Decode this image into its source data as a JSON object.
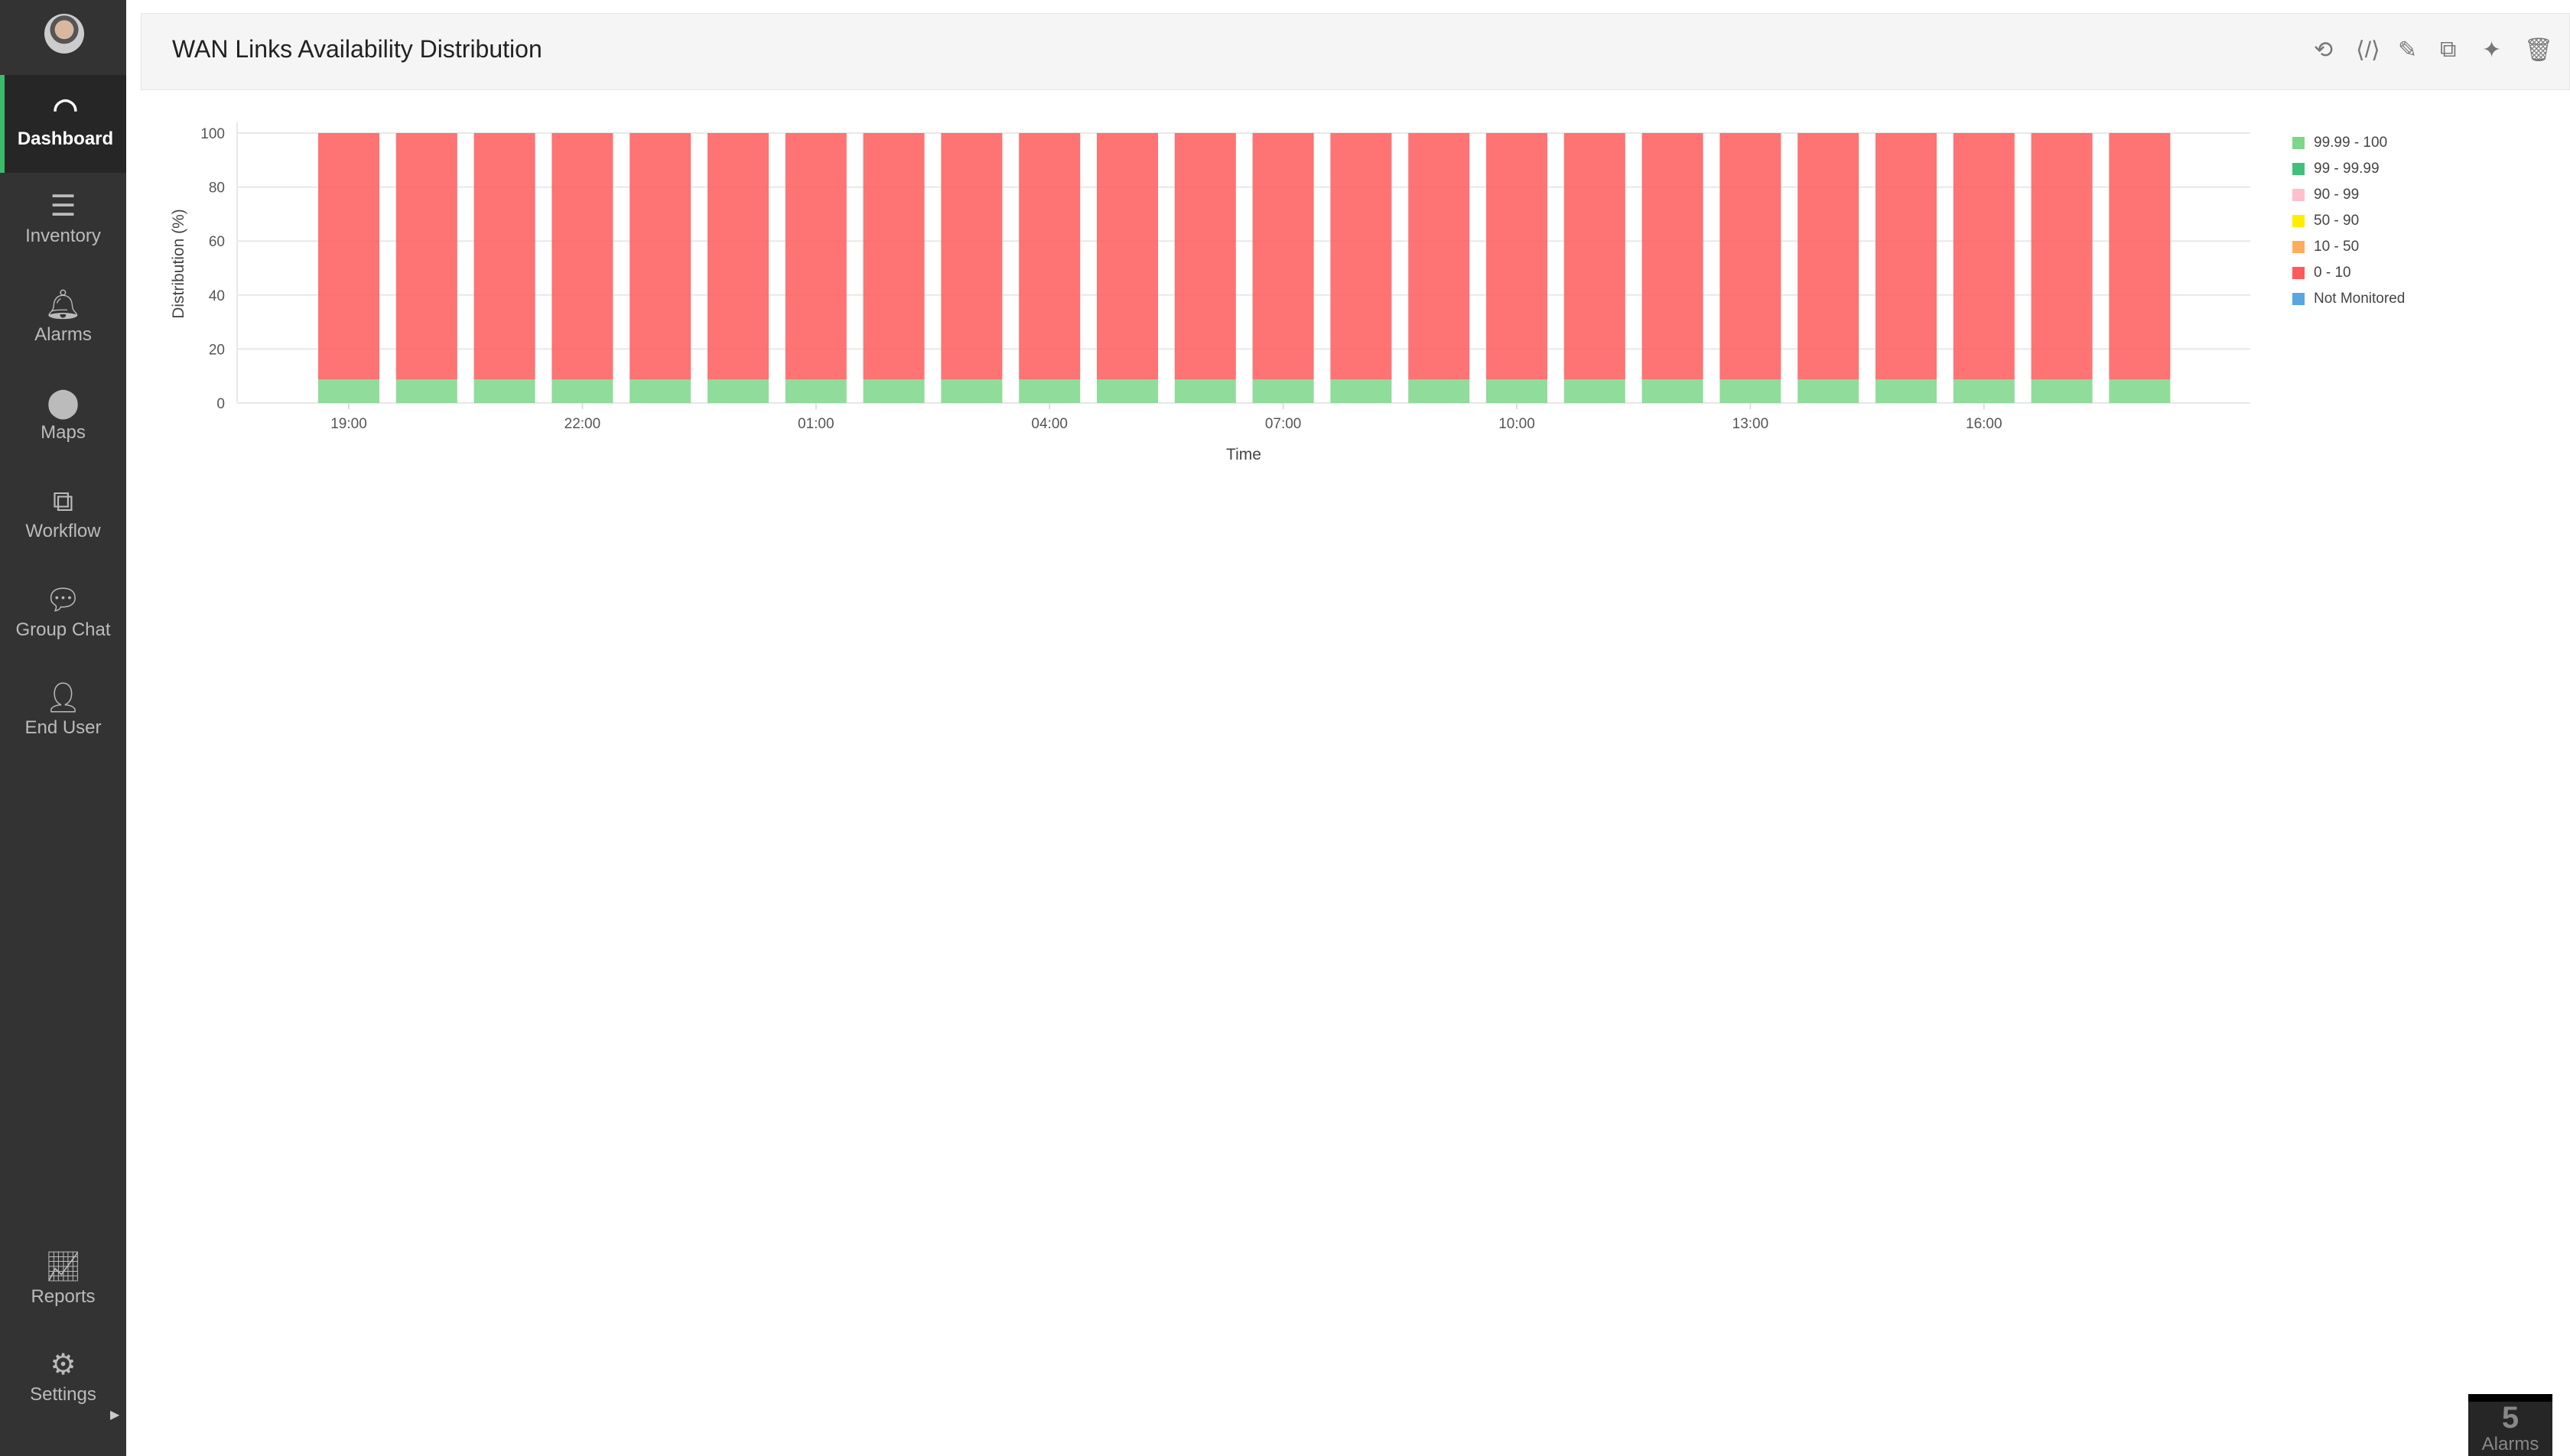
{
  "sidebar": {
    "items": [
      {
        "label": "Dashboard",
        "icon": "speedometer-icon",
        "glyph": "◠"
      },
      {
        "label": "Inventory",
        "icon": "list-check-icon",
        "glyph": "☰"
      },
      {
        "label": "Alarms",
        "icon": "bell-icon",
        "glyph": "🔔︎"
      },
      {
        "label": "Maps",
        "icon": "map-pin-icon",
        "glyph": "⬤"
      },
      {
        "label": "Workflow",
        "icon": "workflow-icon",
        "glyph": "⧉"
      },
      {
        "label": "Group Chat",
        "icon": "chat-icon",
        "glyph": "💬︎"
      },
      {
        "label": "End User",
        "icon": "user-icon",
        "glyph": "👤︎"
      },
      {
        "label": "Reports",
        "icon": "chart-icon",
        "glyph": "📈︎"
      },
      {
        "label": "Settings",
        "icon": "gear-icon",
        "glyph": "⚙"
      }
    ]
  },
  "widget": {
    "title": "WAN Links Availability Distribution",
    "tools": [
      {
        "icon": "refresh-icon",
        "glyph": "⟲"
      },
      {
        "icon": "embed-code-icon",
        "glyph": "⟨/⟩"
      },
      {
        "icon": "edit-icon",
        "glyph": "✎"
      },
      {
        "icon": "copy-icon",
        "glyph": "⧉"
      },
      {
        "icon": "pin-icon",
        "glyph": "✦"
      },
      {
        "icon": "trash-icon",
        "glyph": "🗑︎"
      }
    ]
  },
  "alarms": {
    "count": "5",
    "label": "Alarms"
  },
  "chart_data": {
    "type": "bar",
    "stacked": true,
    "xlabel": "Time",
    "ylabel": "Distribution (%)",
    "ylim": [
      0,
      100
    ],
    "yticks": [
      0,
      20,
      40,
      60,
      80,
      100
    ],
    "categories": [
      "19:00",
      "20:00",
      "21:00",
      "22:00",
      "23:00",
      "00:00",
      "01:00",
      "02:00",
      "03:00",
      "04:00",
      "05:00",
      "06:00",
      "07:00",
      "08:00",
      "09:00",
      "10:00",
      "11:00",
      "12:00",
      "13:00",
      "14:00",
      "15:00",
      "16:00",
      "17:00",
      "18:00"
    ],
    "xtick_labels": [
      "19:00",
      "22:00",
      "01:00",
      "04:00",
      "07:00",
      "10:00",
      "13:00",
      "16:00"
    ],
    "grid": true,
    "legend_position": "right",
    "series": [
      {
        "name": "99.99 - 100",
        "color": "#7dd68a",
        "values": [
          8.7,
          8.7,
          8.7,
          8.7,
          8.7,
          8.7,
          8.7,
          8.7,
          8.7,
          8.7,
          8.7,
          8.7,
          8.7,
          8.7,
          8.7,
          8.7,
          8.7,
          8.7,
          8.7,
          8.7,
          8.7,
          8.7,
          8.7,
          8.7
        ]
      },
      {
        "name": "99 - 99.99",
        "color": "#43bf7b",
        "values": [
          0,
          0,
          0,
          0,
          0,
          0,
          0,
          0,
          0,
          0,
          0,
          0,
          0,
          0,
          0,
          0,
          0,
          0,
          0,
          0,
          0,
          0,
          0,
          0
        ]
      },
      {
        "name": "90 - 99",
        "color": "#ffc0cb",
        "values": [
          0,
          0,
          0,
          0,
          0,
          0,
          0,
          0,
          0,
          0,
          0,
          0,
          0,
          0,
          0,
          0,
          0,
          0,
          0,
          0,
          0,
          0,
          0,
          0
        ]
      },
      {
        "name": "50 - 90",
        "color": "#ffee00",
        "values": [
          0,
          0,
          0,
          0,
          0,
          0,
          0,
          0,
          0,
          0,
          0,
          0,
          0,
          0,
          0,
          0,
          0,
          0,
          0,
          0,
          0,
          0,
          0,
          0
        ]
      },
      {
        "name": "10 - 50",
        "color": "#ffad5c",
        "values": [
          0,
          0,
          0,
          0,
          0,
          0,
          0,
          0,
          0,
          0,
          0,
          0,
          0,
          0,
          0,
          0,
          0,
          0,
          0,
          0,
          0,
          0,
          0,
          0
        ]
      },
      {
        "name": "0 - 10",
        "color": "#fe5a5a",
        "values": [
          91.3,
          91.3,
          91.3,
          91.3,
          91.3,
          91.3,
          91.3,
          91.3,
          91.3,
          91.3,
          91.3,
          91.3,
          91.3,
          91.3,
          91.3,
          91.3,
          91.3,
          91.3,
          91.3,
          91.3,
          91.3,
          91.3,
          91.3,
          91.3
        ]
      },
      {
        "name": "Not Monitored",
        "color": "#5ba6dd",
        "values": [
          0,
          0,
          0,
          0,
          0,
          0,
          0,
          0,
          0,
          0,
          0,
          0,
          0,
          0,
          0,
          0,
          0,
          0,
          0,
          0,
          0,
          0,
          0,
          0
        ]
      }
    ]
  }
}
